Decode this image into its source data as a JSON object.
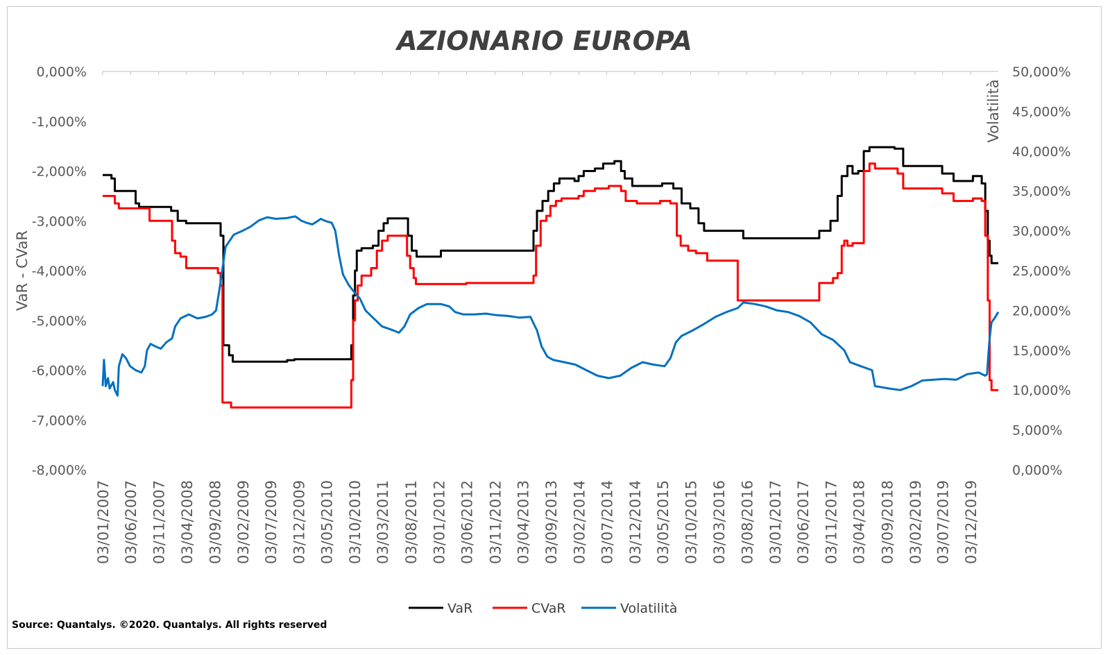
{
  "chart_data": {
    "type": "line",
    "title": "AZIONARIO EUROPA",
    "ylabel_left": "VaR - CVaR",
    "ylabel_right": "Volatilità",
    "ylim_left": [
      -8,
      0
    ],
    "ylim_right": [
      0,
      50
    ],
    "yticks_left": [
      "0,000%",
      "-1,000%",
      "-2,000%",
      "-3,000%",
      "-4,000%",
      "-5,000%",
      "-6,000%",
      "-7,000%",
      "-8,000%"
    ],
    "yticks_right": [
      "50,000%",
      "45,000%",
      "40,000%",
      "35,000%",
      "30,000%",
      "25,000%",
      "20,000%",
      "15,000%",
      "10,000%",
      "5,000%",
      "0,000%"
    ],
    "x_start": "2007-01-03",
    "x_end": "2020-05-01",
    "xticks": [
      "03/01/2007",
      "03/06/2007",
      "03/11/2007",
      "03/04/2008",
      "03/09/2008",
      "03/02/2009",
      "03/07/2009",
      "03/12/2009",
      "03/05/2010",
      "03/10/2010",
      "03/03/2011",
      "03/08/2011",
      "03/01/2012",
      "03/06/2012",
      "03/11/2012",
      "03/04/2013",
      "03/09/2013",
      "03/02/2014",
      "03/07/2014",
      "03/12/2014",
      "03/05/2015",
      "03/10/2015",
      "03/03/2016",
      "03/08/2016",
      "03/01/2017",
      "03/06/2017",
      "03/11/2017",
      "03/04/2018",
      "03/09/2018",
      "03/02/2019",
      "03/07/2019",
      "03/12/2019"
    ],
    "grid": false,
    "legend_position": "bottom",
    "series": [
      {
        "name": "VaR",
        "axis": "left",
        "color": "#000000",
        "step": true,
        "points": [
          [
            "2007-01-03",
            -2.08
          ],
          [
            "2007-02-20",
            -2.15
          ],
          [
            "2007-03-10",
            -2.4
          ],
          [
            "2007-07-01",
            -2.65
          ],
          [
            "2007-07-20",
            -2.72
          ],
          [
            "2008-01-10",
            -2.8
          ],
          [
            "2008-02-15",
            -3.0
          ],
          [
            "2008-04-01",
            -3.05
          ],
          [
            "2008-10-05",
            -3.3
          ],
          [
            "2008-10-20",
            -5.5
          ],
          [
            "2008-11-20",
            -5.7
          ],
          [
            "2008-12-10",
            -5.83
          ],
          [
            "2009-10-01",
            -5.8
          ],
          [
            "2009-11-10",
            -5.78
          ],
          [
            "2010-09-15",
            -5.5
          ],
          [
            "2010-09-25",
            -4.5
          ],
          [
            "2010-10-05",
            -4.0
          ],
          [
            "2010-10-15",
            -3.6
          ],
          [
            "2010-11-10",
            -3.55
          ],
          [
            "2011-01-10",
            -3.5
          ],
          [
            "2011-02-10",
            -3.2
          ],
          [
            "2011-03-10",
            -3.05
          ],
          [
            "2011-04-01",
            -2.95
          ],
          [
            "2011-07-20",
            -3.3
          ],
          [
            "2011-08-10",
            -3.6
          ],
          [
            "2011-09-05",
            -3.72
          ],
          [
            "2012-01-15",
            -3.6
          ],
          [
            "2013-06-01",
            -3.2
          ],
          [
            "2013-06-20",
            -2.8
          ],
          [
            "2013-07-20",
            -2.6
          ],
          [
            "2013-08-20",
            -2.4
          ],
          [
            "2013-09-20",
            -2.25
          ],
          [
            "2013-10-20",
            -2.15
          ],
          [
            "2014-01-10",
            -2.2
          ],
          [
            "2014-02-01",
            -2.1
          ],
          [
            "2014-03-01",
            -2.0
          ],
          [
            "2014-05-01",
            -1.95
          ],
          [
            "2014-06-15",
            -1.85
          ],
          [
            "2014-08-15",
            -1.8
          ],
          [
            "2014-09-20",
            -2.0
          ],
          [
            "2014-10-10",
            -2.15
          ],
          [
            "2014-11-20",
            -2.3
          ],
          [
            "2015-05-01",
            -2.25
          ],
          [
            "2015-07-01",
            -2.35
          ],
          [
            "2015-08-15",
            -2.65
          ],
          [
            "2015-10-01",
            -2.75
          ],
          [
            "2015-11-15",
            -3.05
          ],
          [
            "2015-12-15",
            -3.2
          ],
          [
            "2016-07-15",
            -3.35
          ],
          [
            "2017-09-01",
            -3.2
          ],
          [
            "2017-11-01",
            -3.0
          ],
          [
            "2017-12-10",
            -2.5
          ],
          [
            "2018-01-01",
            -2.1
          ],
          [
            "2018-02-01",
            -1.9
          ],
          [
            "2018-03-01",
            -2.05
          ],
          [
            "2018-04-01",
            -2.0
          ],
          [
            "2018-05-01",
            -1.6
          ],
          [
            "2018-06-01",
            -1.52
          ],
          [
            "2018-10-15",
            -1.55
          ],
          [
            "2018-12-01",
            -1.9
          ],
          [
            "2019-07-01",
            -2.05
          ],
          [
            "2019-09-01",
            -2.2
          ],
          [
            "2019-12-15",
            -2.1
          ],
          [
            "2020-02-01",
            -2.25
          ],
          [
            "2020-02-20",
            -2.8
          ],
          [
            "2020-03-05",
            -3.4
          ],
          [
            "2020-03-15",
            -3.7
          ],
          [
            "2020-03-25",
            -3.85
          ],
          [
            "2020-05-01",
            -3.85
          ]
        ]
      },
      {
        "name": "CVaR",
        "axis": "left",
        "color": "#ff0000",
        "step": true,
        "points": [
          [
            "2007-01-03",
            -2.5
          ],
          [
            "2007-03-10",
            -2.65
          ],
          [
            "2007-04-01",
            -2.75
          ],
          [
            "2007-09-15",
            -3.0
          ],
          [
            "2008-01-15",
            -3.4
          ],
          [
            "2008-02-01",
            -3.65
          ],
          [
            "2008-03-01",
            -3.72
          ],
          [
            "2008-04-01",
            -3.95
          ],
          [
            "2008-09-20",
            -4.05
          ],
          [
            "2008-10-05",
            -4.3
          ],
          [
            "2008-10-15",
            -6.65
          ],
          [
            "2008-12-01",
            -6.75
          ],
          [
            "2010-09-15",
            -6.2
          ],
          [
            "2010-09-25",
            -5.0
          ],
          [
            "2010-10-05",
            -4.6
          ],
          [
            "2010-10-20",
            -4.3
          ],
          [
            "2010-11-10",
            -4.1
          ],
          [
            "2011-01-01",
            -3.95
          ],
          [
            "2011-02-01",
            -3.6
          ],
          [
            "2011-03-01",
            -3.4
          ],
          [
            "2011-04-01",
            -3.3
          ],
          [
            "2011-07-15",
            -3.7
          ],
          [
            "2011-08-01",
            -3.95
          ],
          [
            "2011-08-20",
            -4.15
          ],
          [
            "2011-09-01",
            -4.27
          ],
          [
            "2012-06-01",
            -4.25
          ],
          [
            "2013-06-01",
            -4.1
          ],
          [
            "2013-06-15",
            -3.5
          ],
          [
            "2013-07-10",
            -3.0
          ],
          [
            "2013-08-10",
            -2.9
          ],
          [
            "2013-09-01",
            -2.7
          ],
          [
            "2013-10-01",
            -2.6
          ],
          [
            "2013-11-01",
            -2.55
          ],
          [
            "2014-02-01",
            -2.5
          ],
          [
            "2014-03-01",
            -2.4
          ],
          [
            "2014-05-01",
            -2.35
          ],
          [
            "2014-07-15",
            -2.3
          ],
          [
            "2014-09-20",
            -2.4
          ],
          [
            "2014-10-15",
            -2.6
          ],
          [
            "2014-12-15",
            -2.65
          ],
          [
            "2015-04-20",
            -2.6
          ],
          [
            "2015-06-15",
            -2.65
          ],
          [
            "2015-07-20",
            -3.3
          ],
          [
            "2015-08-10",
            -3.5
          ],
          [
            "2015-09-20",
            -3.6
          ],
          [
            "2015-11-01",
            -3.65
          ],
          [
            "2016-01-01",
            -3.8
          ],
          [
            "2016-06-15",
            -4.6
          ],
          [
            "2017-09-01",
            -4.25
          ],
          [
            "2017-11-15",
            -4.15
          ],
          [
            "2017-12-10",
            -4.05
          ],
          [
            "2018-01-01",
            -3.5
          ],
          [
            "2018-01-15",
            -3.4
          ],
          [
            "2018-02-01",
            -3.5
          ],
          [
            "2018-03-01",
            -3.45
          ],
          [
            "2018-05-01",
            -2.0
          ],
          [
            "2018-06-01",
            -1.85
          ],
          [
            "2018-07-01",
            -1.95
          ],
          [
            "2018-11-01",
            -2.05
          ],
          [
            "2018-12-01",
            -2.35
          ],
          [
            "2019-07-01",
            -2.45
          ],
          [
            "2019-09-01",
            -2.6
          ],
          [
            "2019-12-15",
            -2.55
          ],
          [
            "2020-02-01",
            -2.6
          ],
          [
            "2020-02-20",
            -3.3
          ],
          [
            "2020-03-05",
            -4.6
          ],
          [
            "2020-03-15",
            -6.2
          ],
          [
            "2020-03-25",
            -6.4
          ],
          [
            "2020-05-01",
            -6.4
          ]
        ]
      },
      {
        "name": "Volatilità",
        "axis": "right",
        "color": "#0070c0",
        "step": false,
        "points": [
          [
            "2007-01-03",
            10.5
          ],
          [
            "2007-01-10",
            13.8
          ],
          [
            "2007-01-20",
            10.5
          ],
          [
            "2007-02-01",
            11.5
          ],
          [
            "2007-02-10",
            10.2
          ],
          [
            "2007-03-01",
            11.0
          ],
          [
            "2007-03-10",
            10.0
          ],
          [
            "2007-03-25",
            9.3
          ],
          [
            "2007-04-01",
            13.0
          ],
          [
            "2007-04-20",
            14.5
          ],
          [
            "2007-05-10",
            14.0
          ],
          [
            "2007-06-01",
            13.0
          ],
          [
            "2007-07-01",
            12.5
          ],
          [
            "2007-08-01",
            12.2
          ],
          [
            "2007-08-20",
            13.0
          ],
          [
            "2007-09-01",
            15.0
          ],
          [
            "2007-09-20",
            15.8
          ],
          [
            "2007-10-15",
            15.5
          ],
          [
            "2007-11-15",
            15.2
          ],
          [
            "2007-12-15",
            16.0
          ],
          [
            "2008-01-15",
            16.5
          ],
          [
            "2008-02-01",
            18.0
          ],
          [
            "2008-03-01",
            19.0
          ],
          [
            "2008-04-15",
            19.5
          ],
          [
            "2008-06-01",
            19.0
          ],
          [
            "2008-07-15",
            19.2
          ],
          [
            "2008-08-20",
            19.5
          ],
          [
            "2008-09-10",
            20.0
          ],
          [
            "2008-10-01",
            23.0
          ],
          [
            "2008-11-01",
            28.0
          ],
          [
            "2008-12-15",
            29.5
          ],
          [
            "2009-02-01",
            30.0
          ],
          [
            "2009-03-15",
            30.5
          ],
          [
            "2009-05-01",
            31.3
          ],
          [
            "2009-06-15",
            31.7
          ],
          [
            "2009-08-01",
            31.5
          ],
          [
            "2009-10-01",
            31.6
          ],
          [
            "2009-11-15",
            31.8
          ],
          [
            "2009-12-15",
            31.3
          ],
          [
            "2010-01-15",
            31.0
          ],
          [
            "2010-02-15",
            30.8
          ],
          [
            "2010-03-15",
            31.2
          ],
          [
            "2010-04-01",
            31.5
          ],
          [
            "2010-05-01",
            31.2
          ],
          [
            "2010-06-01",
            31.0
          ],
          [
            "2010-06-20",
            30.0
          ],
          [
            "2010-07-10",
            27.0
          ],
          [
            "2010-08-01",
            24.5
          ],
          [
            "2010-09-01",
            23.2
          ],
          [
            "2010-10-01",
            22.3
          ],
          [
            "2010-11-01",
            21.5
          ],
          [
            "2010-12-01",
            20.0
          ],
          [
            "2011-01-15",
            19.0
          ],
          [
            "2011-03-01",
            18.0
          ],
          [
            "2011-05-01",
            17.5
          ],
          [
            "2011-06-01",
            17.2
          ],
          [
            "2011-07-01",
            18.0
          ],
          [
            "2011-08-01",
            19.5
          ],
          [
            "2011-09-15",
            20.3
          ],
          [
            "2011-11-01",
            20.8
          ],
          [
            "2012-01-15",
            20.8
          ],
          [
            "2012-03-01",
            20.5
          ],
          [
            "2012-04-01",
            19.8
          ],
          [
            "2012-05-15",
            19.5
          ],
          [
            "2012-07-15",
            19.5
          ],
          [
            "2012-09-15",
            19.6
          ],
          [
            "2012-11-15",
            19.4
          ],
          [
            "2013-01-15",
            19.3
          ],
          [
            "2013-03-15",
            19.1
          ],
          [
            "2013-05-15",
            19.2
          ],
          [
            "2013-06-20",
            17.5
          ],
          [
            "2013-07-15",
            15.5
          ],
          [
            "2013-08-15",
            14.2
          ],
          [
            "2013-09-15",
            13.8
          ],
          [
            "2013-11-15",
            13.5
          ],
          [
            "2014-01-15",
            13.2
          ],
          [
            "2014-03-15",
            12.5
          ],
          [
            "2014-05-15",
            11.8
          ],
          [
            "2014-07-15",
            11.5
          ],
          [
            "2014-09-15",
            11.8
          ],
          [
            "2014-11-15",
            12.8
          ],
          [
            "2015-01-15",
            13.5
          ],
          [
            "2015-03-15",
            13.2
          ],
          [
            "2015-05-15",
            13.0
          ],
          [
            "2015-06-15",
            14.0
          ],
          [
            "2015-07-15",
            16.0
          ],
          [
            "2015-08-15",
            16.8
          ],
          [
            "2015-10-15",
            17.5
          ],
          [
            "2015-12-15",
            18.3
          ],
          [
            "2016-02-15",
            19.2
          ],
          [
            "2016-04-15",
            19.8
          ],
          [
            "2016-06-15",
            20.3
          ],
          [
            "2016-07-15",
            21.0
          ],
          [
            "2016-09-15",
            20.8
          ],
          [
            "2016-11-15",
            20.5
          ],
          [
            "2017-01-15",
            20.0
          ],
          [
            "2017-03-15",
            19.8
          ],
          [
            "2017-05-15",
            19.3
          ],
          [
            "2017-07-15",
            18.5
          ],
          [
            "2017-09-15",
            17.0
          ],
          [
            "2017-11-15",
            16.3
          ],
          [
            "2018-01-15",
            15.0
          ],
          [
            "2018-02-15",
            13.5
          ],
          [
            "2018-04-15",
            13.0
          ],
          [
            "2018-06-15",
            12.5
          ],
          [
            "2018-07-01",
            10.5
          ],
          [
            "2018-09-15",
            10.2
          ],
          [
            "2018-11-15",
            10.0
          ],
          [
            "2019-01-15",
            10.5
          ],
          [
            "2019-03-15",
            11.2
          ],
          [
            "2019-05-15",
            11.3
          ],
          [
            "2019-07-15",
            11.4
          ],
          [
            "2019-09-15",
            11.3
          ],
          [
            "2019-11-15",
            12.0
          ],
          [
            "2020-01-15",
            12.2
          ],
          [
            "2020-02-20",
            11.8
          ],
          [
            "2020-03-01",
            12.0
          ],
          [
            "2020-03-08",
            14.5
          ],
          [
            "2020-03-15",
            16.5
          ],
          [
            "2020-03-25",
            18.5
          ],
          [
            "2020-04-10",
            19.0
          ],
          [
            "2020-05-01",
            19.8
          ]
        ]
      }
    ]
  },
  "source": "Source: Quantalys. ©2020. Quantalys. All rights reserved"
}
